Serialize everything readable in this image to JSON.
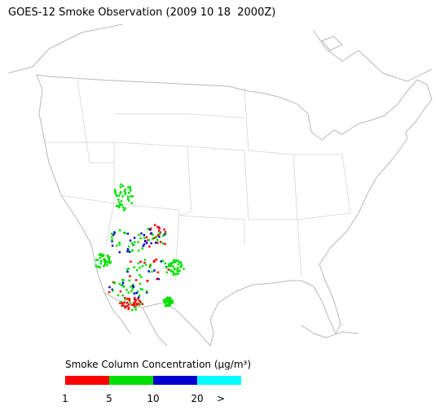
{
  "title": "GOES-12 Smoke Observation (2009 10 18  2000Z)",
  "legend": {
    "title": "Smoke Column Concentration (μg/m³)",
    "colors": [
      "#ff0000",
      "#00e000",
      "#0000d0",
      "#00ffff"
    ],
    "ticks": [
      "1",
      "5",
      "10",
      "20",
      ">"
    ]
  }
}
